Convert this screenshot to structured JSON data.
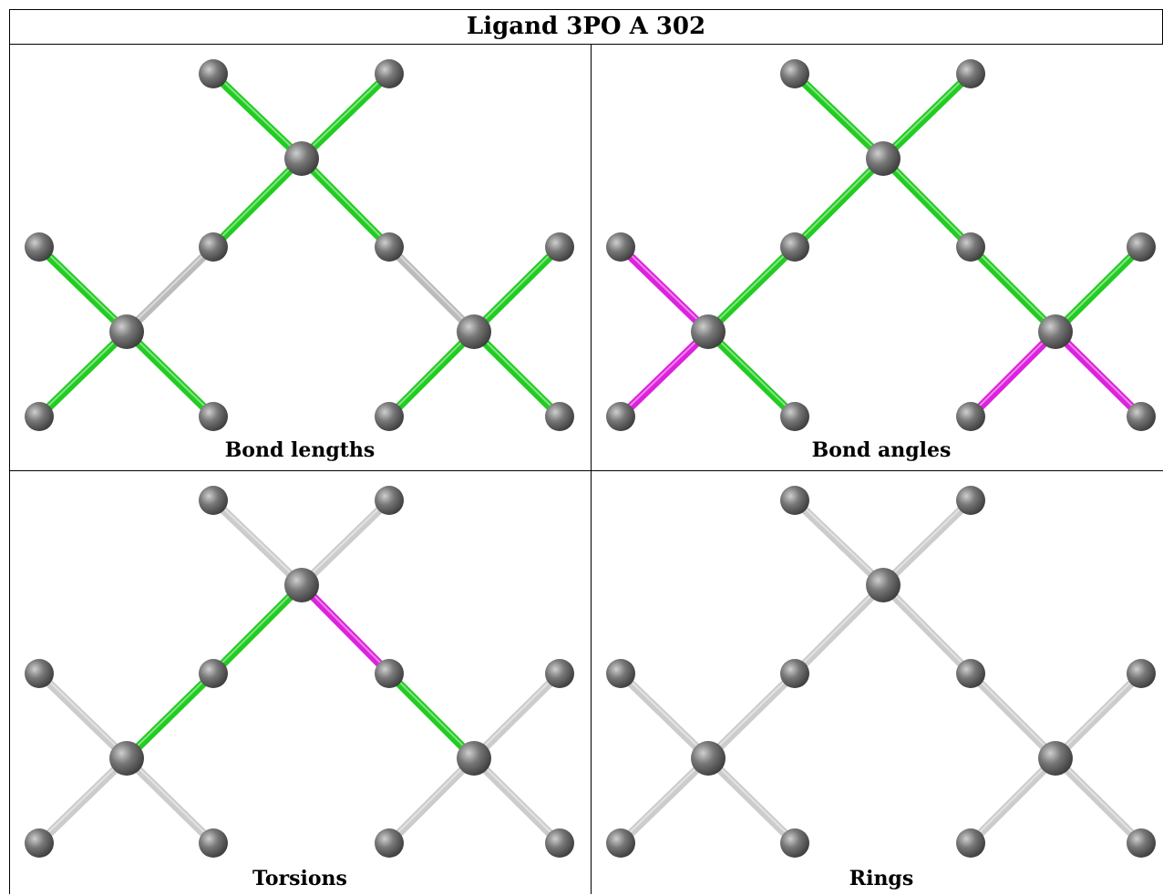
{
  "title": "Ligand 3PO A 302",
  "panels": [
    {
      "caption": "Bond lengths",
      "bond_colors": [
        "#22cc22",
        "#22cc22",
        "#22cc22",
        "#bbbbbb",
        "#22cc22",
        "#bbbbbb",
        "#22cc22",
        "#22cc22",
        "#22cc22",
        "#22cc22",
        "#22cc22",
        "#22cc22"
      ]
    },
    {
      "caption": "Bond angles",
      "bond_colors": [
        "#22cc22",
        "#22cc22",
        "#22cc22",
        "#22cc22",
        "#22cc22",
        "#22cc22",
        "#dd22dd",
        "#dd22dd",
        "#22cc22",
        "#22cc22",
        "#dd22dd",
        "#dd22dd"
      ]
    },
    {
      "caption": "Torsions",
      "bond_colors": [
        "#cccccc",
        "#cccccc",
        "#22cc22",
        "#22cc22",
        "#dd22dd",
        "#22cc22",
        "#cccccc",
        "#cccccc",
        "#cccccc",
        "#cccccc",
        "#cccccc",
        "#cccccc"
      ]
    },
    {
      "caption": "Rings",
      "bond_colors": [
        "#cccccc",
        "#cccccc",
        "#cccccc",
        "#cccccc",
        "#cccccc",
        "#cccccc",
        "#cccccc",
        "#cccccc",
        "#cccccc",
        "#cccccc",
        "#cccccc",
        "#cccccc"
      ]
    }
  ],
  "colors": {
    "atom": "#777777",
    "border": "#000000"
  }
}
